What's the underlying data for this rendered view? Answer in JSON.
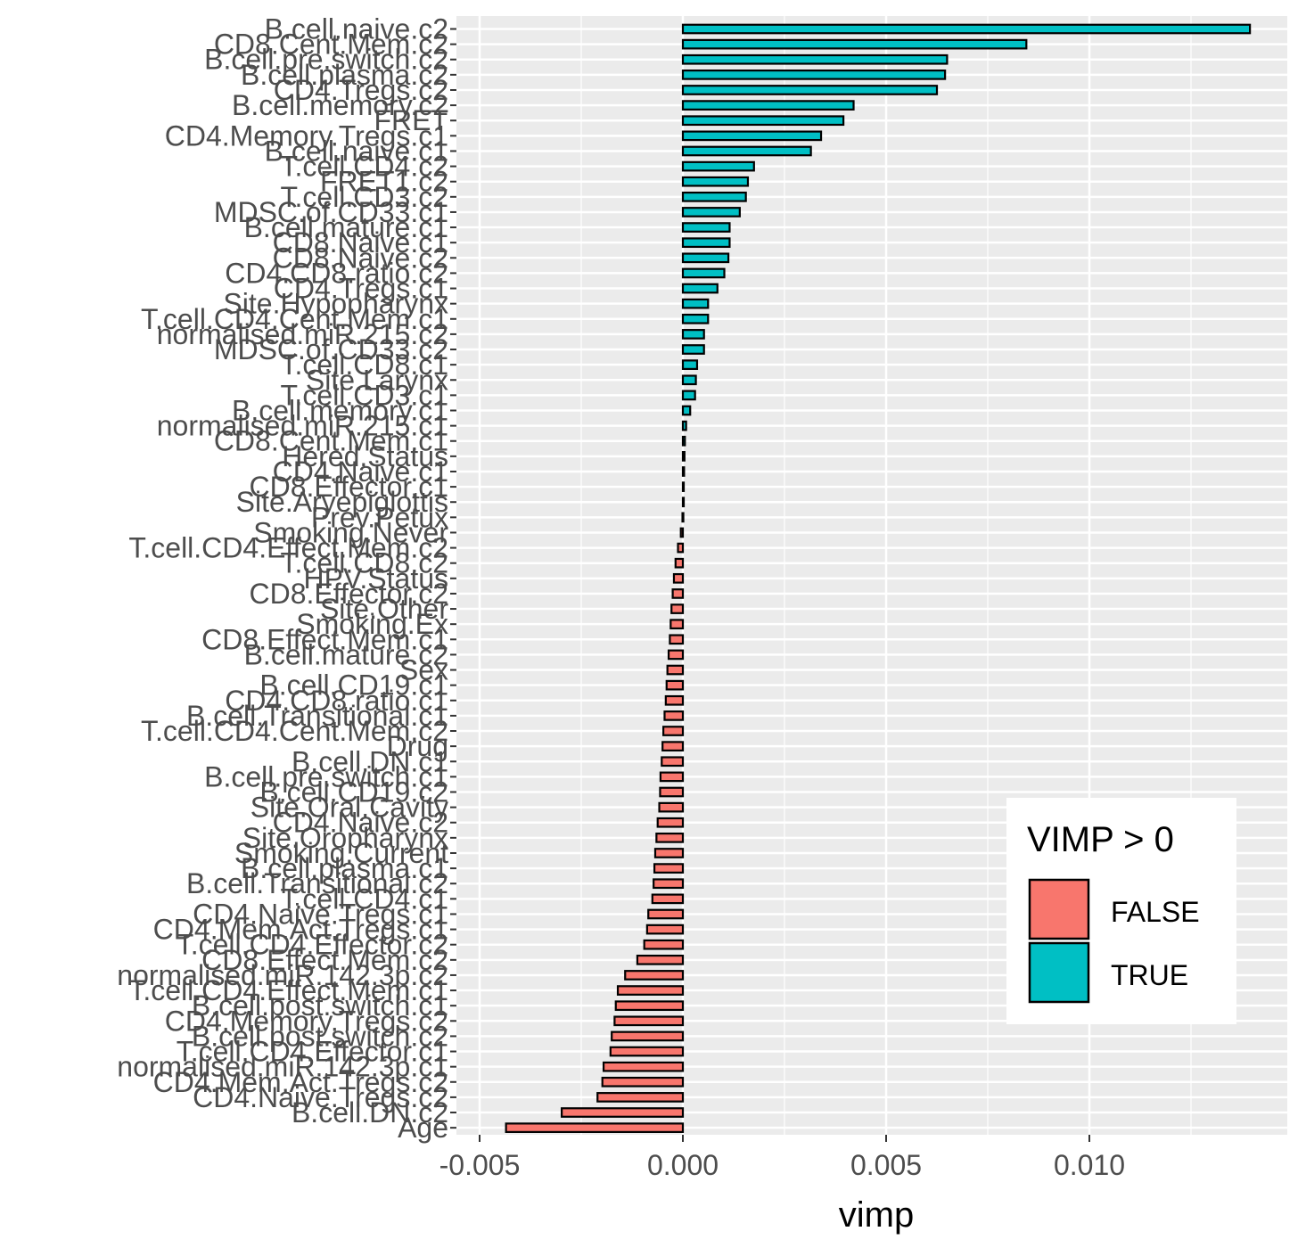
{
  "chart_data": {
    "type": "bar",
    "orientation": "horizontal",
    "xlabel": "vimp",
    "ylabel": "",
    "xlim": [
      -0.005,
      0.0147
    ],
    "x_ticks": [
      -0.005,
      0.0,
      0.005,
      0.01
    ],
    "x_tick_labels": [
      "-0.005",
      "0.000",
      "0.005",
      "0.010"
    ],
    "grid": true,
    "legend": {
      "title": "VIMP > 0",
      "position": "bottom-right",
      "entries": [
        {
          "label": "FALSE",
          "color": "#F8766D"
        },
        {
          "label": "TRUE",
          "color": "#00BFC4"
        }
      ]
    },
    "categories": [
      "B.cell.naive.c2",
      "CD8.Cent.Mem.c2",
      "B.cell.pre.switch.c2",
      "B.cell.plasma.c2",
      "CD4.Tregs.c2",
      "B.cell.memory.c2",
      "FRET",
      "CD4.Memory.Tregs.c1",
      "B.cell.naive.c1",
      "T.cell.CD4.c2",
      "FRET1.c2",
      "T.cell.CD3.c2",
      "MDSC.of.CD33.c1",
      "B.cell.mature.c1",
      "CD8.Naive.c1",
      "CD8.Naive.c2",
      "CD4.CD8.ratio.c2",
      "CD4.Tregs.c1",
      "Site.Hypopharynx",
      "T.cell.CD4.Cent.Mem.c1",
      "normalised.miR.215.c2",
      "MDSC.of.CD33.c2",
      "T.cell.CD8.c1",
      "Site.Larynx",
      "T.cell.CD3.c1",
      "B.cell.memory.c1",
      "normalised.miR.215.c1",
      "CD8.Cent.Mem.c1",
      "Hered.Status",
      "CD4.Naive.c1",
      "CD8.Effector.c1",
      "Site.Aryepiglottis",
      "Prev.Petux",
      "Smoking.Never",
      "T.cell.CD4.Effect.Mem.c2",
      "T.cell.CD8.c2",
      "HPV.Status",
      "CD8.Effector.c2",
      "Site.Other",
      "Smoking.Ex",
      "CD8.Effect.Mem.c1",
      "B.cell.mature.c2",
      "Sex",
      "B.cell.CD19.c1",
      "CD4.CD8.ratio.c1",
      "B.cell.Transitional.c1",
      "T.cell.CD4.Cent.Mem.c2",
      "Drug",
      "B.cell.DN.c1",
      "B.cell.pre.switch.c1",
      "B.cell.CD19.c2",
      "Site.Oral.Cavity",
      "CD4.Naive.c2",
      "Site.Oropharynx",
      "Smoking.Current",
      "B.cell.plasma.c1",
      "B.cell.Transitional.c2",
      "T.cell.CD4.c1",
      "CD4.Naive.Tregs.c1",
      "CD4.Mem.Act.Tregs.c1",
      "T.cell.CD4.Effector.c2",
      "CD8.Effect.Mem.c2",
      "normalised.miR.142.3p.c2",
      "T.cell.CD4.Effect.Mem.c1",
      "B.cell.post.switch.c1",
      "CD4.Memory.Tregs.c2",
      "B.cell.post.switch.c2",
      "T.cell.CD4.Effector.c1",
      "normalised.miR.142.3p.c1",
      "CD4.Mem.Act.Tregs.c2",
      "CD4.Naive.Tregs.c2",
      "B.cell.DN.c2",
      "Age"
    ],
    "values": [
      0.01395,
      0.00845,
      0.0065,
      0.00645,
      0.00625,
      0.0042,
      0.00395,
      0.0034,
      0.00315,
      0.00175,
      0.0016,
      0.00155,
      0.0014,
      0.00115,
      0.00115,
      0.00112,
      0.00102,
      0.00085,
      0.00062,
      0.00062,
      0.00052,
      0.00052,
      0.00035,
      0.00032,
      0.0003,
      0.00018,
      8e-05,
      5e-05,
      4e-05,
      3e-05,
      2e-05,
      1e-05,
      -1e-05,
      -5e-05,
      -0.00012,
      -0.00018,
      -0.00022,
      -0.00025,
      -0.00028,
      -0.0003,
      -0.00032,
      -0.00035,
      -0.00038,
      -0.0004,
      -0.00042,
      -0.00045,
      -0.00048,
      -0.0005,
      -0.00052,
      -0.00055,
      -0.00056,
      -0.00058,
      -0.00062,
      -0.00065,
      -0.00068,
      -0.0007,
      -0.00072,
      -0.00075,
      -0.00085,
      -0.00088,
      -0.00095,
      -0.00112,
      -0.00142,
      -0.0016,
      -0.00165,
      -0.00168,
      -0.00175,
      -0.00178,
      -0.00195,
      -0.00198,
      -0.0021,
      -0.00298,
      -0.00435
    ]
  }
}
